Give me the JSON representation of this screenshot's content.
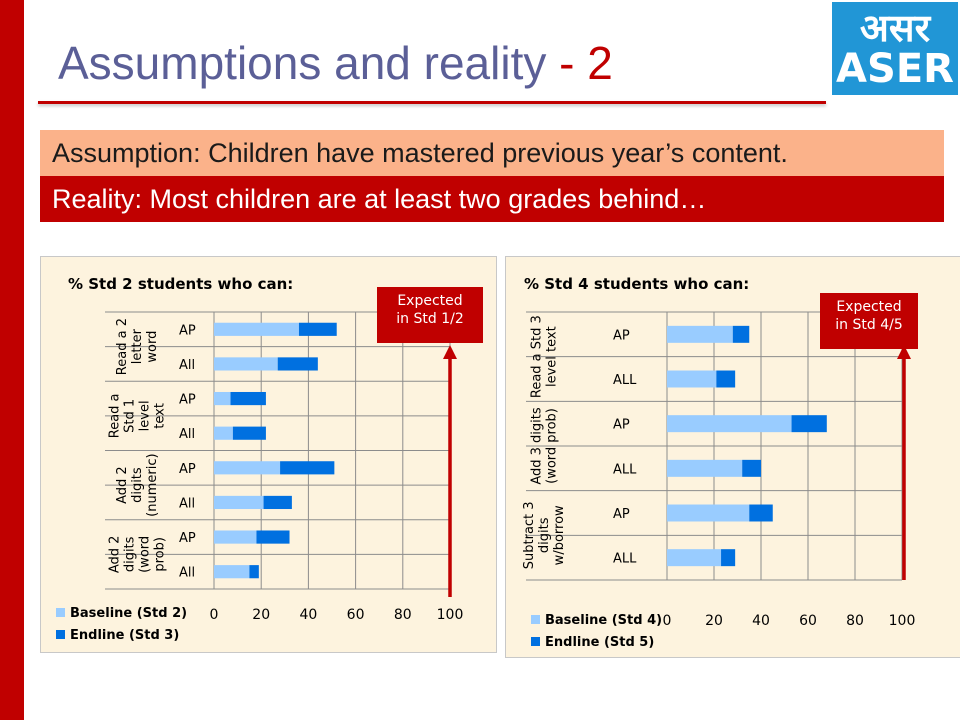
{
  "slide": {
    "title_main": "Assumptions and reality ",
    "title_num": "- 2",
    "logo_hindi": "असर",
    "logo_latin": "ASER",
    "assumption": "Assumption:  Children have mastered previous year’s content.",
    "reality": "Reality:  Most children are at least two grades behind…"
  },
  "colors": {
    "baseline": "#99ccff",
    "endline": "#0070e0",
    "accent": "#c00000",
    "panel_bg": "#fdf3de"
  },
  "chart_data": [
    {
      "type": "bar",
      "orientation": "horizontal",
      "stacked": true,
      "title": "% Std 2 students who can:",
      "callout": "Expected in Std 1/2",
      "groups": [
        {
          "label": "Read a 2 letter word",
          "bars": [
            {
              "label": "AP",
              "baseline": 36,
              "endline": 16
            },
            {
              "label": "All",
              "baseline": 27,
              "endline": 17
            }
          ]
        },
        {
          "label": "Read a Std 1 level text",
          "bars": [
            {
              "label": "AP",
              "baseline": 7,
              "endline": 15
            },
            {
              "label": "All",
              "baseline": 8,
              "endline": 14
            }
          ]
        },
        {
          "label": "Add 2 digits (numeric)",
          "bars": [
            {
              "label": "AP",
              "baseline": 28,
              "endline": 23
            },
            {
              "label": "All",
              "baseline": 21,
              "endline": 12
            }
          ]
        },
        {
          "label": "Add 2 digits (word prob)",
          "bars": [
            {
              "label": "AP",
              "baseline": 18,
              "endline": 14
            },
            {
              "label": "All",
              "baseline": 15,
              "endline": 4
            }
          ]
        }
      ],
      "xlim": [
        0,
        100
      ],
      "xticks": [
        "0",
        "20",
        "40",
        "60",
        "80",
        "100"
      ],
      "series": [
        {
          "name": "Baseline (Std 2)"
        },
        {
          "name": "Endline (Std 3)"
        }
      ],
      "legend": "bottom-left"
    },
    {
      "type": "bar",
      "orientation": "horizontal",
      "stacked": true,
      "title": "% Std 4 students who can:",
      "callout": "Expected in Std 4/5",
      "groups": [
        {
          "label": "Read a Std 3 level text",
          "bars": [
            {
              "label": "AP",
              "baseline": 28,
              "endline": 7
            },
            {
              "label": "ALL",
              "baseline": 21,
              "endline": 8
            }
          ]
        },
        {
          "label": "Add 3 digits (word prob)",
          "bars": [
            {
              "label": "AP",
              "baseline": 53,
              "endline": 15
            },
            {
              "label": "ALL",
              "baseline": 32,
              "endline": 8
            }
          ]
        },
        {
          "label": "Subtract 3 digits w/borrow",
          "bars": [
            {
              "label": "AP",
              "baseline": 35,
              "endline": 10
            },
            {
              "label": "ALL",
              "baseline": 23,
              "endline": 6
            }
          ]
        }
      ],
      "xlim": [
        0,
        100
      ],
      "xticks": [
        "0",
        "20",
        "40",
        "60",
        "80",
        "100"
      ],
      "series": [
        {
          "name": "Baseline (Std 4)"
        },
        {
          "name": "Endline (Std 5)"
        }
      ],
      "legend": "bottom-left"
    }
  ]
}
